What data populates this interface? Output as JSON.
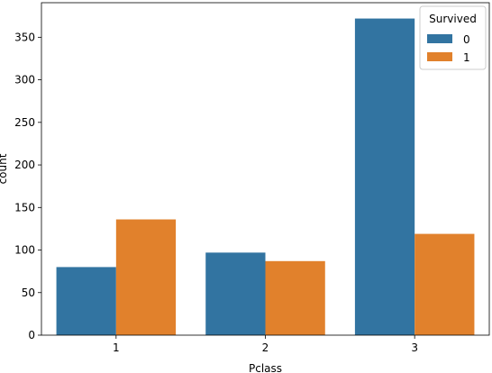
{
  "chart_data": {
    "type": "bar",
    "categories": [
      "1",
      "2",
      "3"
    ],
    "series": [
      {
        "name": "0",
        "values": [
          80,
          97,
          372
        ]
      },
      {
        "name": "1",
        "values": [
          136,
          87,
          119
        ]
      }
    ],
    "colors": {
      "0": "#3274a1",
      "1": "#e1812c"
    },
    "xlabel": "Pclass",
    "ylabel": "count",
    "ylim": [
      0,
      390.6
    ],
    "yticks": [
      0,
      50,
      100,
      150,
      200,
      250,
      300,
      350
    ],
    "legend": {
      "title": "Survived",
      "placement": "top-right"
    },
    "grid": false
  }
}
